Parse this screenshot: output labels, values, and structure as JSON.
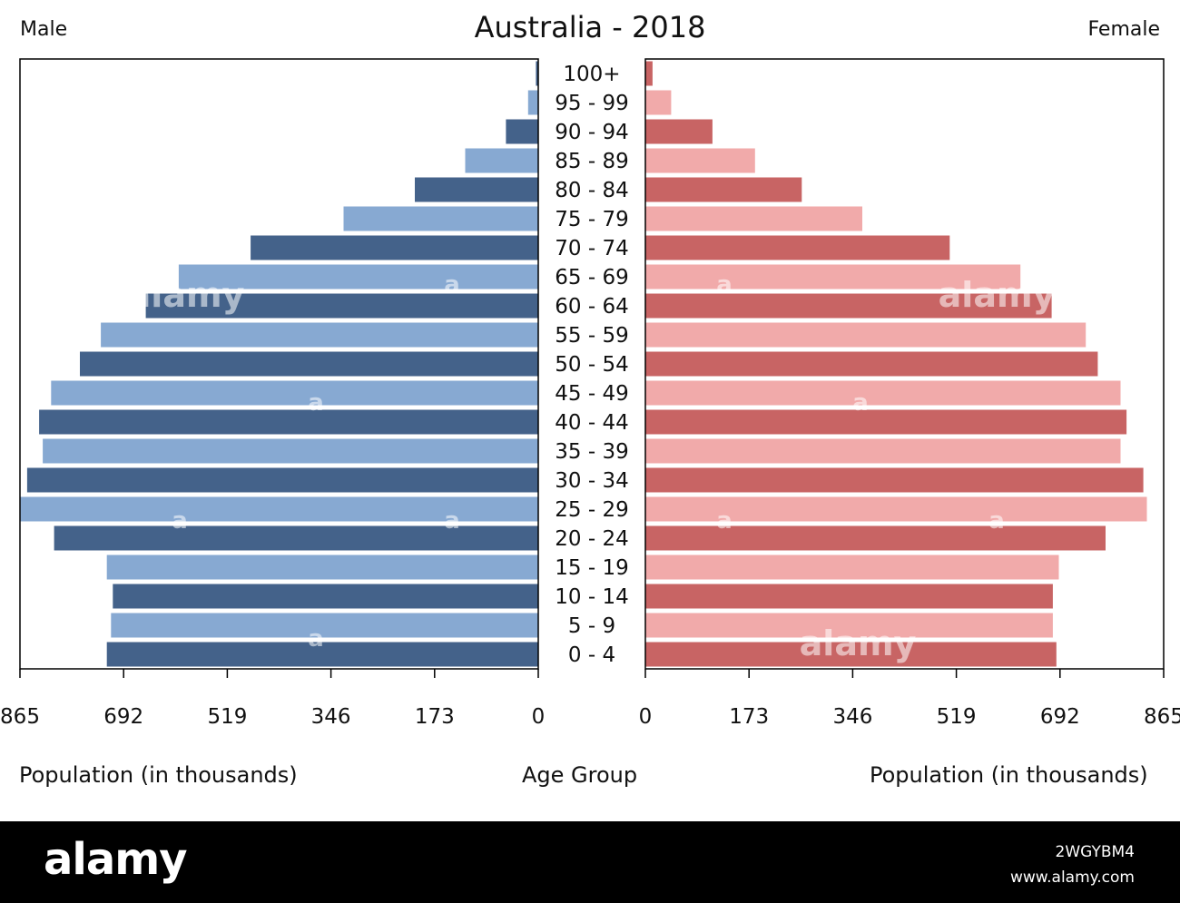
{
  "header": {
    "title": "Australia - 2018",
    "left_label": "Male",
    "right_label": "Female"
  },
  "footer": {
    "left_axis_label": "Population (in thousands)",
    "center_label": "Age Group",
    "right_axis_label": "Population (in thousands)"
  },
  "watermark": {
    "logo": "alamy",
    "image_id": "2WGYBM4",
    "site": "www.alamy.com",
    "overlay_text": "alamy",
    "overlay_mark": "a"
  },
  "colors": {
    "male_dark": "#44628a",
    "male_light": "#87a9d2",
    "female_dark": "#c86464",
    "female_light": "#f1aaaa",
    "axis": "#000000"
  },
  "chart_data": {
    "type": "bar",
    "orientation": "horizontal",
    "layout": "population-pyramid",
    "title": "Australia - 2018",
    "categories": [
      "100+",
      "95 - 99",
      "90 - 94",
      "85 - 89",
      "80 - 84",
      "75 - 79",
      "70 - 74",
      "65 - 69",
      "60 - 64",
      "55 - 59",
      "50 - 54",
      "45 - 49",
      "40 - 44",
      "35 - 39",
      "30 - 34",
      "25 - 29",
      "20 - 24",
      "15 - 19",
      "10 - 14",
      "5 - 9",
      "0 - 4"
    ],
    "series": [
      {
        "name": "Male",
        "side": "left",
        "values": [
          4,
          17,
          54,
          122,
          206,
          325,
          480,
          600,
          655,
          730,
          765,
          813,
          833,
          827,
          853,
          865,
          808,
          720,
          710,
          713,
          720
        ]
      },
      {
        "name": "Female",
        "side": "right",
        "values": [
          12,
          43,
          112,
          183,
          261,
          362,
          508,
          626,
          678,
          735,
          755,
          793,
          803,
          793,
          831,
          837,
          768,
          690,
          680,
          680,
          686
        ]
      }
    ],
    "xlim": [
      0,
      865
    ],
    "ticks": [
      0,
      173,
      346,
      519,
      692,
      865
    ],
    "left_ticks": [
      "865",
      "692",
      "519",
      "346",
      "173",
      "0"
    ],
    "right_ticks": [
      "0",
      "173",
      "346",
      "519",
      "692",
      "865"
    ],
    "xlabel": "Population (in thousands)",
    "ylabel": "Age Group",
    "grid": false
  }
}
